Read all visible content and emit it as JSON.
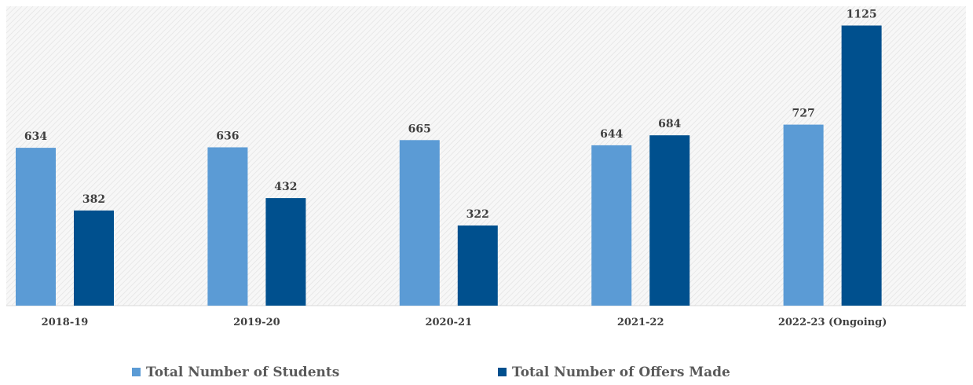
{
  "chart_data": {
    "type": "bar",
    "categories": [
      "2018-19",
      "2019-20",
      "2020-21",
      "2021-22",
      "2022-23 (Ongoing)"
    ],
    "series": [
      {
        "name": "Total Number of Students",
        "values": [
          634,
          636,
          665,
          644,
          727
        ],
        "color": "#5b9bd5"
      },
      {
        "name": "Total Number of Offers Made",
        "values": [
          382,
          432,
          322,
          684,
          1125
        ],
        "color": "#00508e"
      }
    ],
    "ylim": [
      0,
      1200
    ],
    "grid": false,
    "legend_position": "bottom",
    "data_labels": true,
    "plot_background": "hatched-light-gray"
  }
}
